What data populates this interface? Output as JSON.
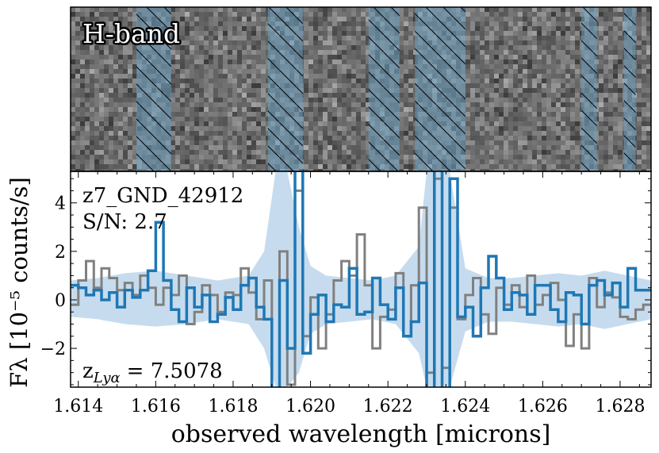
{
  "chart_data": [
    {
      "type": "heatmap",
      "title": "H-band",
      "description_role": "2D spectrum cutout",
      "x_range": [
        1.6138,
        1.6288
      ],
      "masked_regions": [
        [
          1.6155,
          1.6164
        ],
        [
          1.6189,
          1.6198
        ],
        [
          1.6215,
          1.6223
        ],
        [
          1.6227,
          1.624
        ],
        [
          1.627,
          1.6274
        ],
        [
          1.6281,
          1.6284
        ]
      ],
      "colors": {
        "pixel_base": "#a0a0a0",
        "mask_tint": "#6ea0c3",
        "hatch": "#000000",
        "title_fill": "#ffffff",
        "title_stroke": "#000000"
      }
    },
    {
      "type": "line",
      "object_label": "z7_GND_42912",
      "snr_label": "S/N: 2.7",
      "redshift_label": "z",
      "redshift_subscript": "Lyα",
      "redshift_value": "= 7.5078",
      "xlabel": "observed wavelength [microns]",
      "ylabel": "Fλ [10⁻⁵ counts/s]",
      "xlim": [
        1.6138,
        1.6288
      ],
      "ylim": [
        -3.6,
        5.3
      ],
      "xticks": [
        "1.614",
        "1.616",
        "1.618",
        "1.620",
        "1.622",
        "1.624",
        "1.626",
        "1.628"
      ],
      "yticks": [
        "−2",
        "0",
        "2",
        "4"
      ],
      "colors": {
        "model": "#1f77b4",
        "model_step": "#808080",
        "error_band": "#c6dcee",
        "axes": "#000000"
      },
      "series": [
        {
          "role": "primary-step",
          "color": "#1f77b4",
          "x": [
            1.6138,
            1.614,
            1.6142,
            1.6144,
            1.6146,
            1.6148,
            1.615,
            1.6152,
            1.6154,
            1.6156,
            1.6158,
            1.616,
            1.6162,
            1.6164,
            1.6166,
            1.6168,
            1.617,
            1.6172,
            1.6174,
            1.6176,
            1.6178,
            1.618,
            1.6182,
            1.6184,
            1.6186,
            1.6188,
            1.619,
            1.6192,
            1.6194,
            1.6196,
            1.6198,
            1.62,
            1.6202,
            1.6204,
            1.6206,
            1.6208,
            1.621,
            1.6212,
            1.6214,
            1.6216,
            1.6218,
            1.622,
            1.6222,
            1.6224,
            1.6226,
            1.6228,
            1.623,
            1.6232,
            1.6234,
            1.6236,
            1.6238,
            1.624,
            1.6242,
            1.6244,
            1.6246,
            1.6248,
            1.625,
            1.6252,
            1.6254,
            1.6256,
            1.6258,
            1.626,
            1.6262,
            1.6264,
            1.6266,
            1.6268,
            1.627,
            1.6272,
            1.6274,
            1.6276,
            1.6278,
            1.628,
            1.6282,
            1.6284,
            1.6286
          ],
          "y": [
            0.6,
            0.5,
            0.2,
            0.4,
            0.0,
            0.3,
            -0.3,
            0.4,
            0.1,
            0.4,
            1.2,
            3.2,
            0.8,
            -0.4,
            -0.9,
            0.5,
            -0.3,
            0.2,
            -0.9,
            -0.6,
            0.1,
            -0.4,
            0.6,
            0.9,
            -0.3,
            -0.8,
            -5.0,
            0.8,
            -2.0,
            6.5,
            -2.2,
            -0.6,
            0.2,
            -0.9,
            -0.2,
            -0.3,
            1.3,
            -0.6,
            -0.5,
            0.9,
            -0.2,
            -0.8,
            0.5,
            -1.5,
            -0.9,
            0.7,
            -5.0,
            6.0,
            -5.0,
            5.0,
            -0.7,
            -0.3,
            -1.5,
            0.5,
            1.8,
            0.9,
            -0.4,
            0.3,
            0.2,
            -0.6,
            0.6,
            0.6,
            -0.4,
            -0.9,
            0.3,
            0.2,
            -1.0,
            0.6,
            0.8,
            0.2,
            0.7,
            -0.3,
            1.3,
            0.4,
            0.4
          ]
        },
        {
          "role": "secondary-step",
          "color": "#808080",
          "x": [
            1.6138,
            1.614,
            1.6142,
            1.6144,
            1.6146,
            1.6148,
            1.615,
            1.6152,
            1.6154,
            1.6156,
            1.6158,
            1.616,
            1.6162,
            1.6164,
            1.6166,
            1.6168,
            1.617,
            1.6172,
            1.6174,
            1.6176,
            1.6178,
            1.618,
            1.6182,
            1.6184,
            1.6186,
            1.6188,
            1.619,
            1.6192,
            1.6194,
            1.6196,
            1.6198,
            1.62,
            1.6202,
            1.6204,
            1.6206,
            1.6208,
            1.621,
            1.6212,
            1.6214,
            1.6216,
            1.6218,
            1.622,
            1.6222,
            1.6224,
            1.6226,
            1.6228,
            1.623,
            1.6232,
            1.6234,
            1.6236,
            1.6238,
            1.624,
            1.6242,
            1.6244,
            1.6246,
            1.6248,
            1.625,
            1.6252,
            1.6254,
            1.6256,
            1.6258,
            1.626,
            1.6262,
            1.6264,
            1.6266,
            1.6268,
            1.627,
            1.6272,
            1.6274,
            1.6276,
            1.6278,
            1.628,
            1.6282,
            1.6284,
            1.6286
          ],
          "y": [
            -0.2,
            0.8,
            1.6,
            0.5,
            1.3,
            0.9,
            0.4,
            0.7,
            0.2,
            1.0,
            0.5,
            -0.2,
            0.5,
            0.2,
            1.0,
            -1.0,
            -0.5,
            0.6,
            0.2,
            -0.5,
            0.3,
            0.2,
            1.3,
            0.3,
            -0.8,
            0.8,
            -3.8,
            2.0,
            -3.5,
            4.5,
            -1.5,
            0.1,
            -2.0,
            -0.6,
            0.8,
            1.6,
            1.0,
            2.7,
            0.6,
            -2.0,
            -0.7,
            -0.4,
            1.1,
            -1.5,
            0.6,
            3.8,
            -3.0,
            5.0,
            -2.8,
            3.8,
            -0.8,
            0.2,
            0.9,
            -0.6,
            -1.4,
            0.5,
            -0.2,
            0.6,
            -0.3,
            1.0,
            -0.2,
            0.2,
            0.7,
            0.0,
            -1.9,
            -0.6,
            -2.0,
            0.9,
            -0.3,
            0.3,
            0.1,
            -0.7,
            -0.8,
            -0.4,
            -0.2
          ]
        }
      ],
      "error_band": {
        "x": [
          1.6138,
          1.6145,
          1.6152,
          1.616,
          1.6168,
          1.6176,
          1.6184,
          1.6188,
          1.6191,
          1.6194,
          1.6197,
          1.62,
          1.6204,
          1.621,
          1.6216,
          1.6222,
          1.6228,
          1.623,
          1.6233,
          1.6236,
          1.624,
          1.6246,
          1.6252,
          1.6258,
          1.6264,
          1.627,
          1.6276,
          1.6282,
          1.6288
        ],
        "upper": [
          0.8,
          0.9,
          1.1,
          1.2,
          1.0,
          0.8,
          1.0,
          2.0,
          5.3,
          5.3,
          3.0,
          1.4,
          1.0,
          0.9,
          0.8,
          1.0,
          2.2,
          5.3,
          5.3,
          5.3,
          1.3,
          0.9,
          0.9,
          1.0,
          1.1,
          1.0,
          1.2,
          1.0,
          0.8
        ],
        "lower": [
          -0.7,
          -0.8,
          -1.0,
          -1.1,
          -1.0,
          -0.8,
          -1.0,
          -2.0,
          -3.6,
          -3.6,
          -3.0,
          -1.4,
          -1.0,
          -0.9,
          -0.8,
          -1.0,
          -2.2,
          -3.6,
          -3.6,
          -3.6,
          -1.3,
          -0.9,
          -0.9,
          -1.0,
          -1.1,
          -1.0,
          -1.2,
          -1.0,
          -0.8
        ]
      }
    }
  ]
}
